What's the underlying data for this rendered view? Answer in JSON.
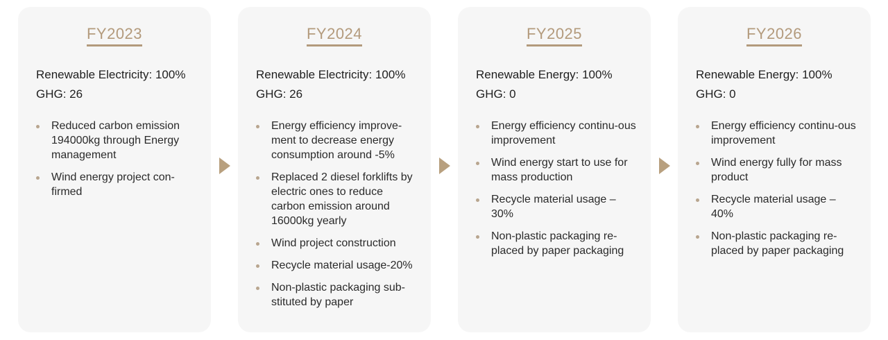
{
  "cards": [
    {
      "year": "FY2023",
      "energy": "Renewable Electricity: 100%",
      "ghg": "GHG: 26",
      "items": [
        "Reduced carbon emission 194000kg through Energy management",
        "Wind energy project con-firmed"
      ]
    },
    {
      "year": "FY2024",
      "energy": "Renewable Electricity: 100%",
      "ghg": "GHG: 26",
      "items": [
        "Energy efficiency improve-ment to decrease energy consumption around -5%",
        "Replaced 2 diesel forklifts by electric ones to reduce carbon emission around 16000kg yearly",
        "Wind project construction",
        "Recycle material usage-20%",
        "Non-plastic packaging sub-stituted by paper"
      ]
    },
    {
      "year": "FY2025",
      "energy": "Renewable Energy: 100%",
      "ghg": "GHG: 0",
      "items": [
        "Energy efficiency continu-ous  improvement",
        "Wind energy start to use for mass production",
        "Recycle  material usage – 30%",
        "Non-plastic packaging re-placed by paper packaging"
      ]
    },
    {
      "year": "FY2026",
      "energy": "Renewable Energy: 100%",
      "ghg": "GHG: 0",
      "items": [
        "Energy efficiency continu-ous  improvement",
        "Wind energy fully for mass product",
        "Recycle  material usage – 40%",
        "Non-plastic packaging re-placed by paper packaging"
      ]
    }
  ],
  "colors": {
    "accent": "#b39a7c",
    "card_background": "#f6f6f6",
    "arrow": "#b8a07f",
    "bullet": "#b8a58f"
  },
  "icons": {
    "arrow": "triangle-right-icon",
    "bullet": "bullet-dot-icon"
  }
}
